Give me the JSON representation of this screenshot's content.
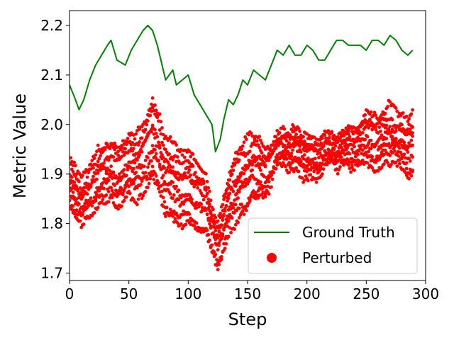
{
  "chart_data": {
    "type": "line+scatter",
    "xlabel": "Step",
    "ylabel": "Metric Value",
    "xlim": [
      0,
      300
    ],
    "ylim": [
      1.685,
      2.23
    ],
    "xticks": [
      "0",
      "50",
      "100",
      "150",
      "200",
      "250",
      "300"
    ],
    "yticks": [
      "1.7",
      "1.8",
      "1.9",
      "2.0",
      "2.1",
      "2.2"
    ],
    "grid": false,
    "legend_position": "lower-right",
    "colors": {
      "ground_truth": "#008000",
      "perturbed": "#ff0000"
    },
    "series": [
      {
        "name": "Ground Truth",
        "kind": "line",
        "x": [
          0,
          5,
          8,
          12,
          17,
          22,
          27,
          32,
          35,
          40,
          47,
          52,
          57,
          62,
          66,
          70,
          74,
          78,
          81,
          84,
          87,
          90,
          95,
          100,
          105,
          110,
          115,
          120,
          123,
          127,
          130,
          134,
          138,
          142,
          146,
          150,
          155,
          160,
          165,
          170,
          175,
          180,
          185,
          190,
          195,
          200,
          205,
          210,
          215,
          220,
          225,
          230,
          235,
          240,
          245,
          250,
          255,
          260,
          265,
          270,
          275,
          280,
          285,
          289
        ],
        "y": [
          2.08,
          2.05,
          2.03,
          2.05,
          2.09,
          2.12,
          2.14,
          2.16,
          2.17,
          2.13,
          2.12,
          2.15,
          2.17,
          2.19,
          2.2,
          2.19,
          2.16,
          2.12,
          2.09,
          2.1,
          2.11,
          2.08,
          2.09,
          2.1,
          2.06,
          2.04,
          2.02,
          2.0,
          1.945,
          1.97,
          2.01,
          2.05,
          2.04,
          2.06,
          2.09,
          2.08,
          2.11,
          2.1,
          2.09,
          2.12,
          2.15,
          2.14,
          2.16,
          2.14,
          2.14,
          2.16,
          2.15,
          2.13,
          2.13,
          2.15,
          2.17,
          2.17,
          2.16,
          2.16,
          2.16,
          2.15,
          2.17,
          2.17,
          2.16,
          2.18,
          2.17,
          2.15,
          2.14,
          2.15
        ]
      },
      {
        "name": "Perturbed",
        "kind": "scatter",
        "x": [
          0,
          5,
          10,
          15,
          20,
          25,
          30,
          35,
          40,
          45,
          50,
          55,
          60,
          65,
          70,
          75,
          80,
          85,
          90,
          95,
          100,
          105,
          110,
          115,
          120,
          125,
          130,
          135,
          140,
          145,
          150,
          155,
          160,
          165,
          170,
          175,
          180,
          185,
          190,
          195,
          200,
          205,
          210,
          215,
          220,
          225,
          230,
          235,
          240,
          245,
          250,
          255,
          260,
          265,
          270,
          275,
          280,
          285,
          289
        ],
        "y": [
          1.88,
          1.86,
          1.84,
          1.86,
          1.87,
          1.89,
          1.9,
          1.91,
          1.89,
          1.9,
          1.92,
          1.91,
          1.92,
          1.94,
          1.97,
          1.94,
          1.9,
          1.89,
          1.88,
          1.87,
          1.88,
          1.86,
          1.85,
          1.84,
          1.79,
          1.76,
          1.8,
          1.85,
          1.87,
          1.89,
          1.9,
          1.92,
          1.91,
          1.9,
          1.92,
          1.95,
          1.96,
          1.95,
          1.96,
          1.95,
          1.94,
          1.94,
          1.93,
          1.95,
          1.95,
          1.94,
          1.95,
          1.96,
          1.95,
          1.96,
          1.97,
          1.96,
          1.96,
          1.97,
          1.98,
          1.97,
          1.96,
          1.95,
          1.96
        ],
        "spread": [
          0.05,
          0.05,
          0.05,
          0.05,
          0.06,
          0.06,
          0.06,
          0.06,
          0.06,
          0.06,
          0.06,
          0.06,
          0.06,
          0.07,
          0.07,
          0.07,
          0.07,
          0.07,
          0.07,
          0.07,
          0.07,
          0.07,
          0.07,
          0.06,
          0.05,
          0.05,
          0.06,
          0.06,
          0.07,
          0.07,
          0.07,
          0.06,
          0.06,
          0.06,
          0.05,
          0.04,
          0.04,
          0.04,
          0.04,
          0.04,
          0.04,
          0.04,
          0.04,
          0.03,
          0.03,
          0.03,
          0.03,
          0.04,
          0.04,
          0.04,
          0.05,
          0.05,
          0.05,
          0.05,
          0.06,
          0.05,
          0.05,
          0.06,
          0.06
        ]
      }
    ]
  }
}
